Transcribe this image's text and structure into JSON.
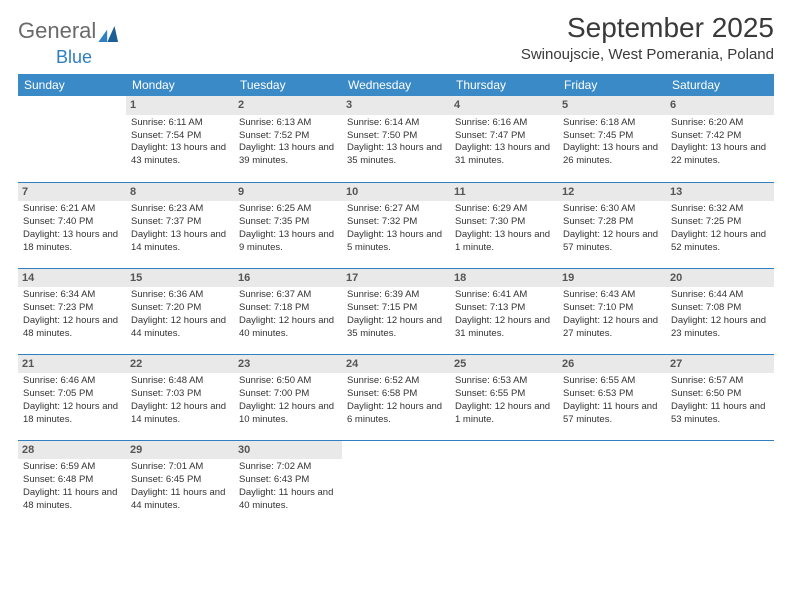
{
  "logo": {
    "text1": "General",
    "text2": "Blue"
  },
  "title": "September 2025",
  "location": "Swinoujscie, West Pomerania, Poland",
  "colors": {
    "header_bg": "#3a8ac8",
    "header_text": "#ffffff",
    "daynum_bg": "#e9e9e9",
    "rule": "#2f7fc1",
    "logo_gray": "#6a6a6a",
    "logo_blue": "#2f7fc1"
  },
  "weekdays": [
    "Sunday",
    "Monday",
    "Tuesday",
    "Wednesday",
    "Thursday",
    "Friday",
    "Saturday"
  ],
  "weeks": [
    [
      null,
      {
        "n": "1",
        "sr": "Sunrise: 6:11 AM",
        "ss": "Sunset: 7:54 PM",
        "dl": "Daylight: 13 hours and 43 minutes."
      },
      {
        "n": "2",
        "sr": "Sunrise: 6:13 AM",
        "ss": "Sunset: 7:52 PM",
        "dl": "Daylight: 13 hours and 39 minutes."
      },
      {
        "n": "3",
        "sr": "Sunrise: 6:14 AM",
        "ss": "Sunset: 7:50 PM",
        "dl": "Daylight: 13 hours and 35 minutes."
      },
      {
        "n": "4",
        "sr": "Sunrise: 6:16 AM",
        "ss": "Sunset: 7:47 PM",
        "dl": "Daylight: 13 hours and 31 minutes."
      },
      {
        "n": "5",
        "sr": "Sunrise: 6:18 AM",
        "ss": "Sunset: 7:45 PM",
        "dl": "Daylight: 13 hours and 26 minutes."
      },
      {
        "n": "6",
        "sr": "Sunrise: 6:20 AM",
        "ss": "Sunset: 7:42 PM",
        "dl": "Daylight: 13 hours and 22 minutes."
      }
    ],
    [
      {
        "n": "7",
        "sr": "Sunrise: 6:21 AM",
        "ss": "Sunset: 7:40 PM",
        "dl": "Daylight: 13 hours and 18 minutes."
      },
      {
        "n": "8",
        "sr": "Sunrise: 6:23 AM",
        "ss": "Sunset: 7:37 PM",
        "dl": "Daylight: 13 hours and 14 minutes."
      },
      {
        "n": "9",
        "sr": "Sunrise: 6:25 AM",
        "ss": "Sunset: 7:35 PM",
        "dl": "Daylight: 13 hours and 9 minutes."
      },
      {
        "n": "10",
        "sr": "Sunrise: 6:27 AM",
        "ss": "Sunset: 7:32 PM",
        "dl": "Daylight: 13 hours and 5 minutes."
      },
      {
        "n": "11",
        "sr": "Sunrise: 6:29 AM",
        "ss": "Sunset: 7:30 PM",
        "dl": "Daylight: 13 hours and 1 minute."
      },
      {
        "n": "12",
        "sr": "Sunrise: 6:30 AM",
        "ss": "Sunset: 7:28 PM",
        "dl": "Daylight: 12 hours and 57 minutes."
      },
      {
        "n": "13",
        "sr": "Sunrise: 6:32 AM",
        "ss": "Sunset: 7:25 PM",
        "dl": "Daylight: 12 hours and 52 minutes."
      }
    ],
    [
      {
        "n": "14",
        "sr": "Sunrise: 6:34 AM",
        "ss": "Sunset: 7:23 PM",
        "dl": "Daylight: 12 hours and 48 minutes."
      },
      {
        "n": "15",
        "sr": "Sunrise: 6:36 AM",
        "ss": "Sunset: 7:20 PM",
        "dl": "Daylight: 12 hours and 44 minutes."
      },
      {
        "n": "16",
        "sr": "Sunrise: 6:37 AM",
        "ss": "Sunset: 7:18 PM",
        "dl": "Daylight: 12 hours and 40 minutes."
      },
      {
        "n": "17",
        "sr": "Sunrise: 6:39 AM",
        "ss": "Sunset: 7:15 PM",
        "dl": "Daylight: 12 hours and 35 minutes."
      },
      {
        "n": "18",
        "sr": "Sunrise: 6:41 AM",
        "ss": "Sunset: 7:13 PM",
        "dl": "Daylight: 12 hours and 31 minutes."
      },
      {
        "n": "19",
        "sr": "Sunrise: 6:43 AM",
        "ss": "Sunset: 7:10 PM",
        "dl": "Daylight: 12 hours and 27 minutes."
      },
      {
        "n": "20",
        "sr": "Sunrise: 6:44 AM",
        "ss": "Sunset: 7:08 PM",
        "dl": "Daylight: 12 hours and 23 minutes."
      }
    ],
    [
      {
        "n": "21",
        "sr": "Sunrise: 6:46 AM",
        "ss": "Sunset: 7:05 PM",
        "dl": "Daylight: 12 hours and 18 minutes."
      },
      {
        "n": "22",
        "sr": "Sunrise: 6:48 AM",
        "ss": "Sunset: 7:03 PM",
        "dl": "Daylight: 12 hours and 14 minutes."
      },
      {
        "n": "23",
        "sr": "Sunrise: 6:50 AM",
        "ss": "Sunset: 7:00 PM",
        "dl": "Daylight: 12 hours and 10 minutes."
      },
      {
        "n": "24",
        "sr": "Sunrise: 6:52 AM",
        "ss": "Sunset: 6:58 PM",
        "dl": "Daylight: 12 hours and 6 minutes."
      },
      {
        "n": "25",
        "sr": "Sunrise: 6:53 AM",
        "ss": "Sunset: 6:55 PM",
        "dl": "Daylight: 12 hours and 1 minute."
      },
      {
        "n": "26",
        "sr": "Sunrise: 6:55 AM",
        "ss": "Sunset: 6:53 PM",
        "dl": "Daylight: 11 hours and 57 minutes."
      },
      {
        "n": "27",
        "sr": "Sunrise: 6:57 AM",
        "ss": "Sunset: 6:50 PM",
        "dl": "Daylight: 11 hours and 53 minutes."
      }
    ],
    [
      {
        "n": "28",
        "sr": "Sunrise: 6:59 AM",
        "ss": "Sunset: 6:48 PM",
        "dl": "Daylight: 11 hours and 48 minutes."
      },
      {
        "n": "29",
        "sr": "Sunrise: 7:01 AM",
        "ss": "Sunset: 6:45 PM",
        "dl": "Daylight: 11 hours and 44 minutes."
      },
      {
        "n": "30",
        "sr": "Sunrise: 7:02 AM",
        "ss": "Sunset: 6:43 PM",
        "dl": "Daylight: 11 hours and 40 minutes."
      },
      null,
      null,
      null,
      null
    ]
  ]
}
